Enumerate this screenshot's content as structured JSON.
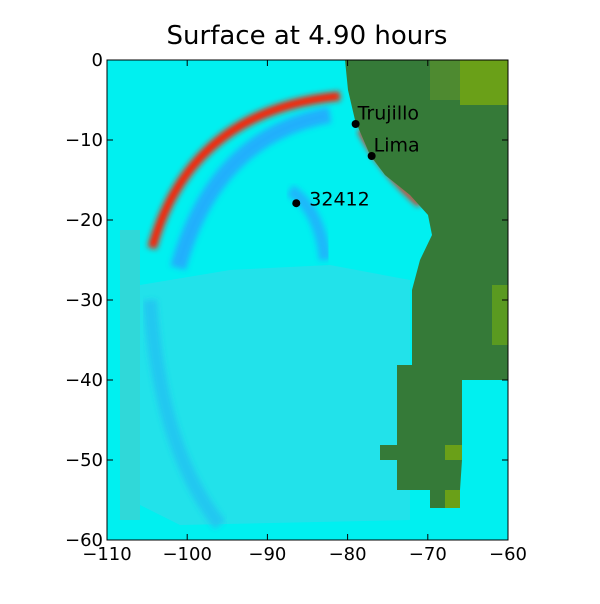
{
  "chart_data": {
    "type": "map",
    "title": "Surface at 4.90 hours",
    "xlim": [
      -110,
      -60
    ],
    "ylim": [
      -60,
      0
    ],
    "xticks": [
      {
        "value": -110,
        "label": "−110"
      },
      {
        "value": -100,
        "label": "−100"
      },
      {
        "value": -90,
        "label": "−90"
      },
      {
        "value": -80,
        "label": "−80"
      },
      {
        "value": -70,
        "label": "−70"
      },
      {
        "value": -60,
        "label": "−60"
      }
    ],
    "yticks": [
      {
        "value": 0,
        "label": "0"
      },
      {
        "value": -10,
        "label": "−10"
      },
      {
        "value": -20,
        "label": "−20"
      },
      {
        "value": -30,
        "label": "−30"
      },
      {
        "value": -40,
        "label": "−40"
      },
      {
        "value": -50,
        "label": "−50"
      },
      {
        "value": -60,
        "label": "−60"
      }
    ],
    "points": [
      {
        "label": "Trujillo",
        "x": -79,
        "y": -8
      },
      {
        "label": "Lima",
        "x": -77,
        "y": -12
      },
      {
        "label": "32412",
        "x": -86.4,
        "y": -17.9
      }
    ],
    "marker_color": "#000000"
  }
}
